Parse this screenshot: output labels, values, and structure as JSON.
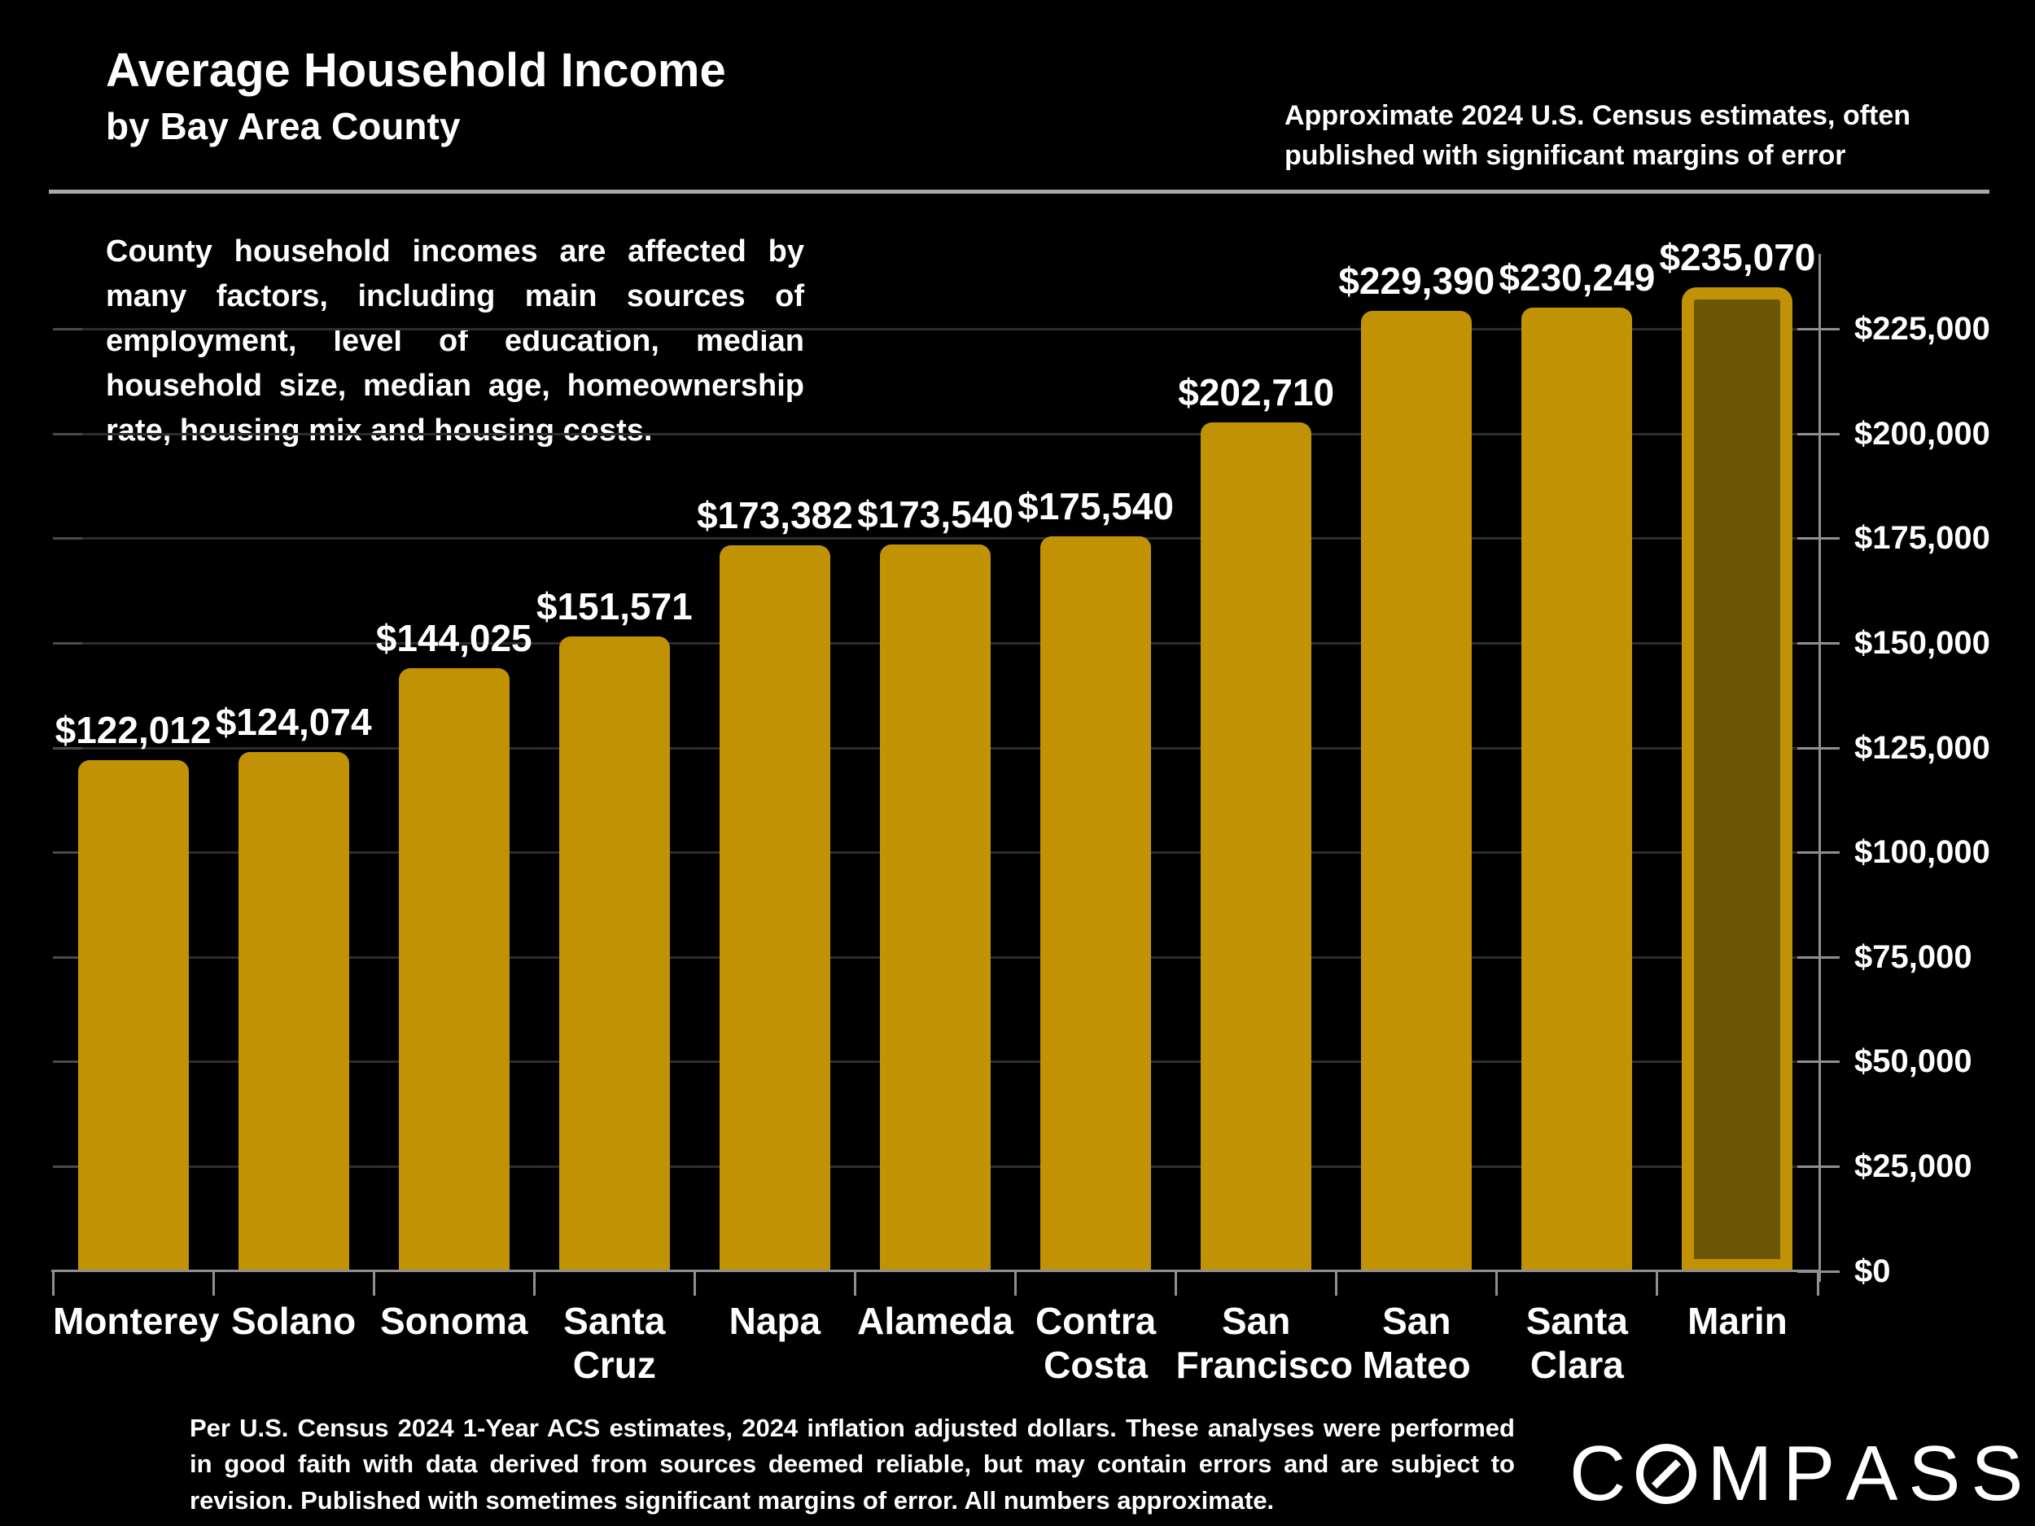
{
  "header": {
    "title": "Average Household Income",
    "subtitle": "by Bay Area County",
    "note_line1": "Approximate 2024 U.S. Census estimates, often",
    "note_line2": "published with significant margins of error"
  },
  "description": "County household incomes are affected by many factors, including main sources of employment, level of education, median household size, median age, homeownership rate, housing mix and housing costs.",
  "chart_data": {
    "type": "bar",
    "title": "Average Household Income by Bay Area County",
    "categories": [
      "Monterey",
      "Solano",
      "Sonoma",
      "Santa Cruz",
      "Napa",
      "Alameda",
      "Contra Costa",
      "San Francisco",
      "San Mateo",
      "Santa Clara",
      "Marin"
    ],
    "category_lines": [
      [
        "Monterey"
      ],
      [
        "Solano"
      ],
      [
        "Sonoma"
      ],
      [
        "Santa",
        "Cruz"
      ],
      [
        "Napa"
      ],
      [
        "Alameda"
      ],
      [
        "Contra",
        "Costa"
      ],
      [
        "San",
        "Francisco"
      ],
      [
        "San",
        "Mateo"
      ],
      [
        "Santa",
        "Clara"
      ],
      [
        "Marin"
      ]
    ],
    "values": [
      122012,
      124074,
      144025,
      151571,
      173382,
      173540,
      175540,
      202710,
      229390,
      230249,
      235070
    ],
    "value_labels": [
      "$122,012",
      "$124,074",
      "$144,025",
      "$151,571",
      "$173,382",
      "$173,540",
      "$175,540",
      "$202,710",
      "$229,390",
      "$230,249",
      "$235,070"
    ],
    "ylim": [
      0,
      237000
    ],
    "ytick_values": [
      0,
      25000,
      50000,
      75000,
      100000,
      125000,
      150000,
      175000,
      200000,
      225000
    ],
    "ytick_labels": [
      "$0",
      "$25,000",
      "$50,000",
      "$75,000",
      "$100,000",
      "$125,000",
      "$150,000",
      "$175,000",
      "$200,000",
      "$225,000"
    ],
    "axis_side": "right",
    "grid": true,
    "background_color": "#000000",
    "bar_color": "#c19206",
    "highlight": {
      "category": "Marin",
      "outline_color": "#c19206",
      "fill_color": "#6b5608"
    }
  },
  "footer": {
    "disclaimer": "Per U.S. Census 2024 1-Year ACS estimates, 2024 inflation adjusted dollars. These analyses were performed in good faith with data derived from sources deemed reliable, but may contain errors and are subject to revision.  Published with sometimes significant margins of error. All numbers approximate.",
    "logo_text": "COMPASS"
  }
}
